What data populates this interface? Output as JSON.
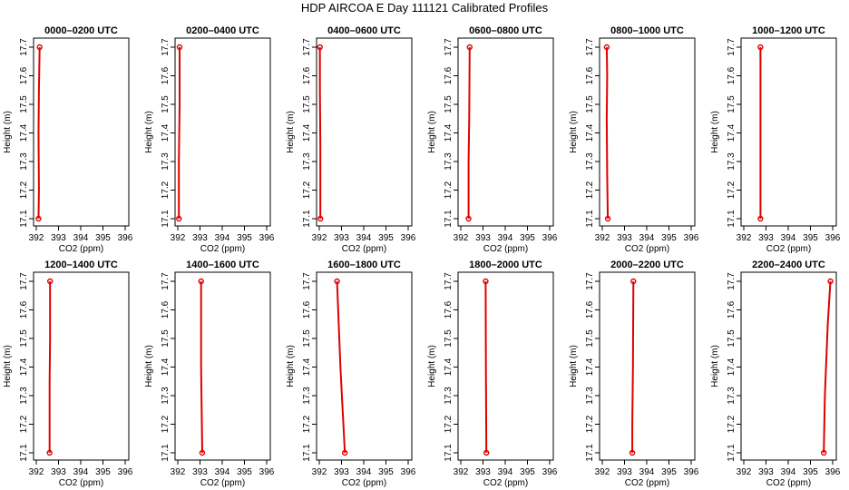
{
  "title": "HDP AIRCOA E  Day 111121  Calibrated Profiles",
  "chart_data": {
    "type": "line",
    "xlabel": "CO2 (ppm)",
    "ylabel": "Height (m)",
    "xlim": [
      392,
      396
    ],
    "ylim": [
      17.1,
      17.7
    ],
    "x_ticks": [
      "392",
      "393",
      "394",
      "395",
      "396"
    ],
    "y_ticks": [
      "17.1",
      "17.2",
      "17.3",
      "17.4",
      "17.5",
      "17.6",
      "17.7"
    ],
    "line_color": "#e00000",
    "panels": [
      {
        "title": "0000–0200 UTC",
        "points": [
          {
            "x": 392.1,
            "y": 17.1
          },
          {
            "x": 392.12,
            "y": 17.2
          },
          {
            "x": 392.1,
            "y": 17.4
          },
          {
            "x": 392.12,
            "y": 17.55
          },
          {
            "x": 392.15,
            "y": 17.7
          }
        ]
      },
      {
        "title": "0200–0400 UTC",
        "points": [
          {
            "x": 392.05,
            "y": 17.1
          },
          {
            "x": 392.05,
            "y": 17.3
          },
          {
            "x": 392.08,
            "y": 17.5
          },
          {
            "x": 392.08,
            "y": 17.7
          }
        ]
      },
      {
        "title": "0400–0600 UTC",
        "points": [
          {
            "x": 392.05,
            "y": 17.1
          },
          {
            "x": 392.05,
            "y": 17.35
          },
          {
            "x": 392.03,
            "y": 17.55
          },
          {
            "x": 392.03,
            "y": 17.7
          }
        ]
      },
      {
        "title": "0600–0800 UTC",
        "points": [
          {
            "x": 392.35,
            "y": 17.1
          },
          {
            "x": 392.35,
            "y": 17.3
          },
          {
            "x": 392.38,
            "y": 17.45
          },
          {
            "x": 392.4,
            "y": 17.7
          }
        ]
      },
      {
        "title": "0800–1000 UTC",
        "points": [
          {
            "x": 392.25,
            "y": 17.1
          },
          {
            "x": 392.22,
            "y": 17.25
          },
          {
            "x": 392.2,
            "y": 17.45
          },
          {
            "x": 392.22,
            "y": 17.6
          },
          {
            "x": 392.2,
            "y": 17.7
          }
        ]
      },
      {
        "title": "1000–1200 UTC",
        "points": [
          {
            "x": 392.75,
            "y": 17.1
          },
          {
            "x": 392.75,
            "y": 17.4
          },
          {
            "x": 392.75,
            "y": 17.7
          }
        ]
      },
      {
        "title": "1200–1400 UTC",
        "points": [
          {
            "x": 392.6,
            "y": 17.1
          },
          {
            "x": 392.6,
            "y": 17.35
          },
          {
            "x": 392.62,
            "y": 17.5
          },
          {
            "x": 392.62,
            "y": 17.7
          }
        ]
      },
      {
        "title": "1400–1600 UTC",
        "points": [
          {
            "x": 393.1,
            "y": 17.1
          },
          {
            "x": 393.05,
            "y": 17.4
          },
          {
            "x": 393.05,
            "y": 17.7
          }
        ]
      },
      {
        "title": "1600–1800 UTC",
        "points": [
          {
            "x": 393.15,
            "y": 17.1
          },
          {
            "x": 392.95,
            "y": 17.4
          },
          {
            "x": 392.8,
            "y": 17.7
          }
        ]
      },
      {
        "title": "1800–2000 UTC",
        "points": [
          {
            "x": 393.15,
            "y": 17.1
          },
          {
            "x": 393.13,
            "y": 17.4
          },
          {
            "x": 393.12,
            "y": 17.7
          }
        ]
      },
      {
        "title": "2000–2200 UTC",
        "points": [
          {
            "x": 393.35,
            "y": 17.1
          },
          {
            "x": 393.35,
            "y": 17.2
          },
          {
            "x": 393.38,
            "y": 17.4
          },
          {
            "x": 393.4,
            "y": 17.7
          }
        ]
      },
      {
        "title": "2200–2400 UTC",
        "points": [
          {
            "x": 395.6,
            "y": 17.1
          },
          {
            "x": 395.65,
            "y": 17.3
          },
          {
            "x": 395.78,
            "y": 17.55
          },
          {
            "x": 395.9,
            "y": 17.7
          }
        ]
      }
    ]
  }
}
